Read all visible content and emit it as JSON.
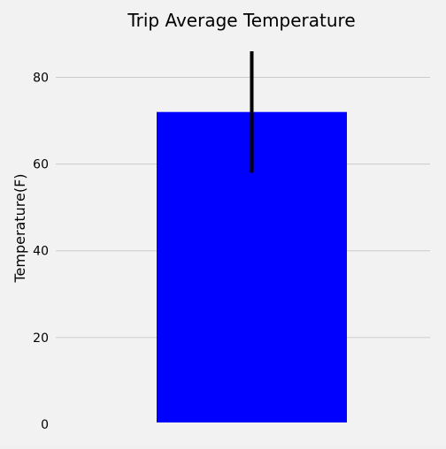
{
  "chart_data": {
    "type": "bar",
    "title": "Trip Average Temperature",
    "xlabel": "",
    "ylabel": "Temperature(F)",
    "categories": [
      ""
    ],
    "series": [
      {
        "values": [
          72
        ],
        "error_bars": [
          {
            "low": 58,
            "high": 86
          }
        ]
      }
    ],
    "ylim": [
      0,
      86
    ],
    "y_ticks": [
      0,
      20,
      40,
      60,
      80
    ],
    "grid": true,
    "legend": "none",
    "colors": {
      "bar": "#0000ff",
      "error_bar": "#000000",
      "grid": "#cbcbcb",
      "background": "#f2f2f2",
      "text": "#000000"
    }
  }
}
